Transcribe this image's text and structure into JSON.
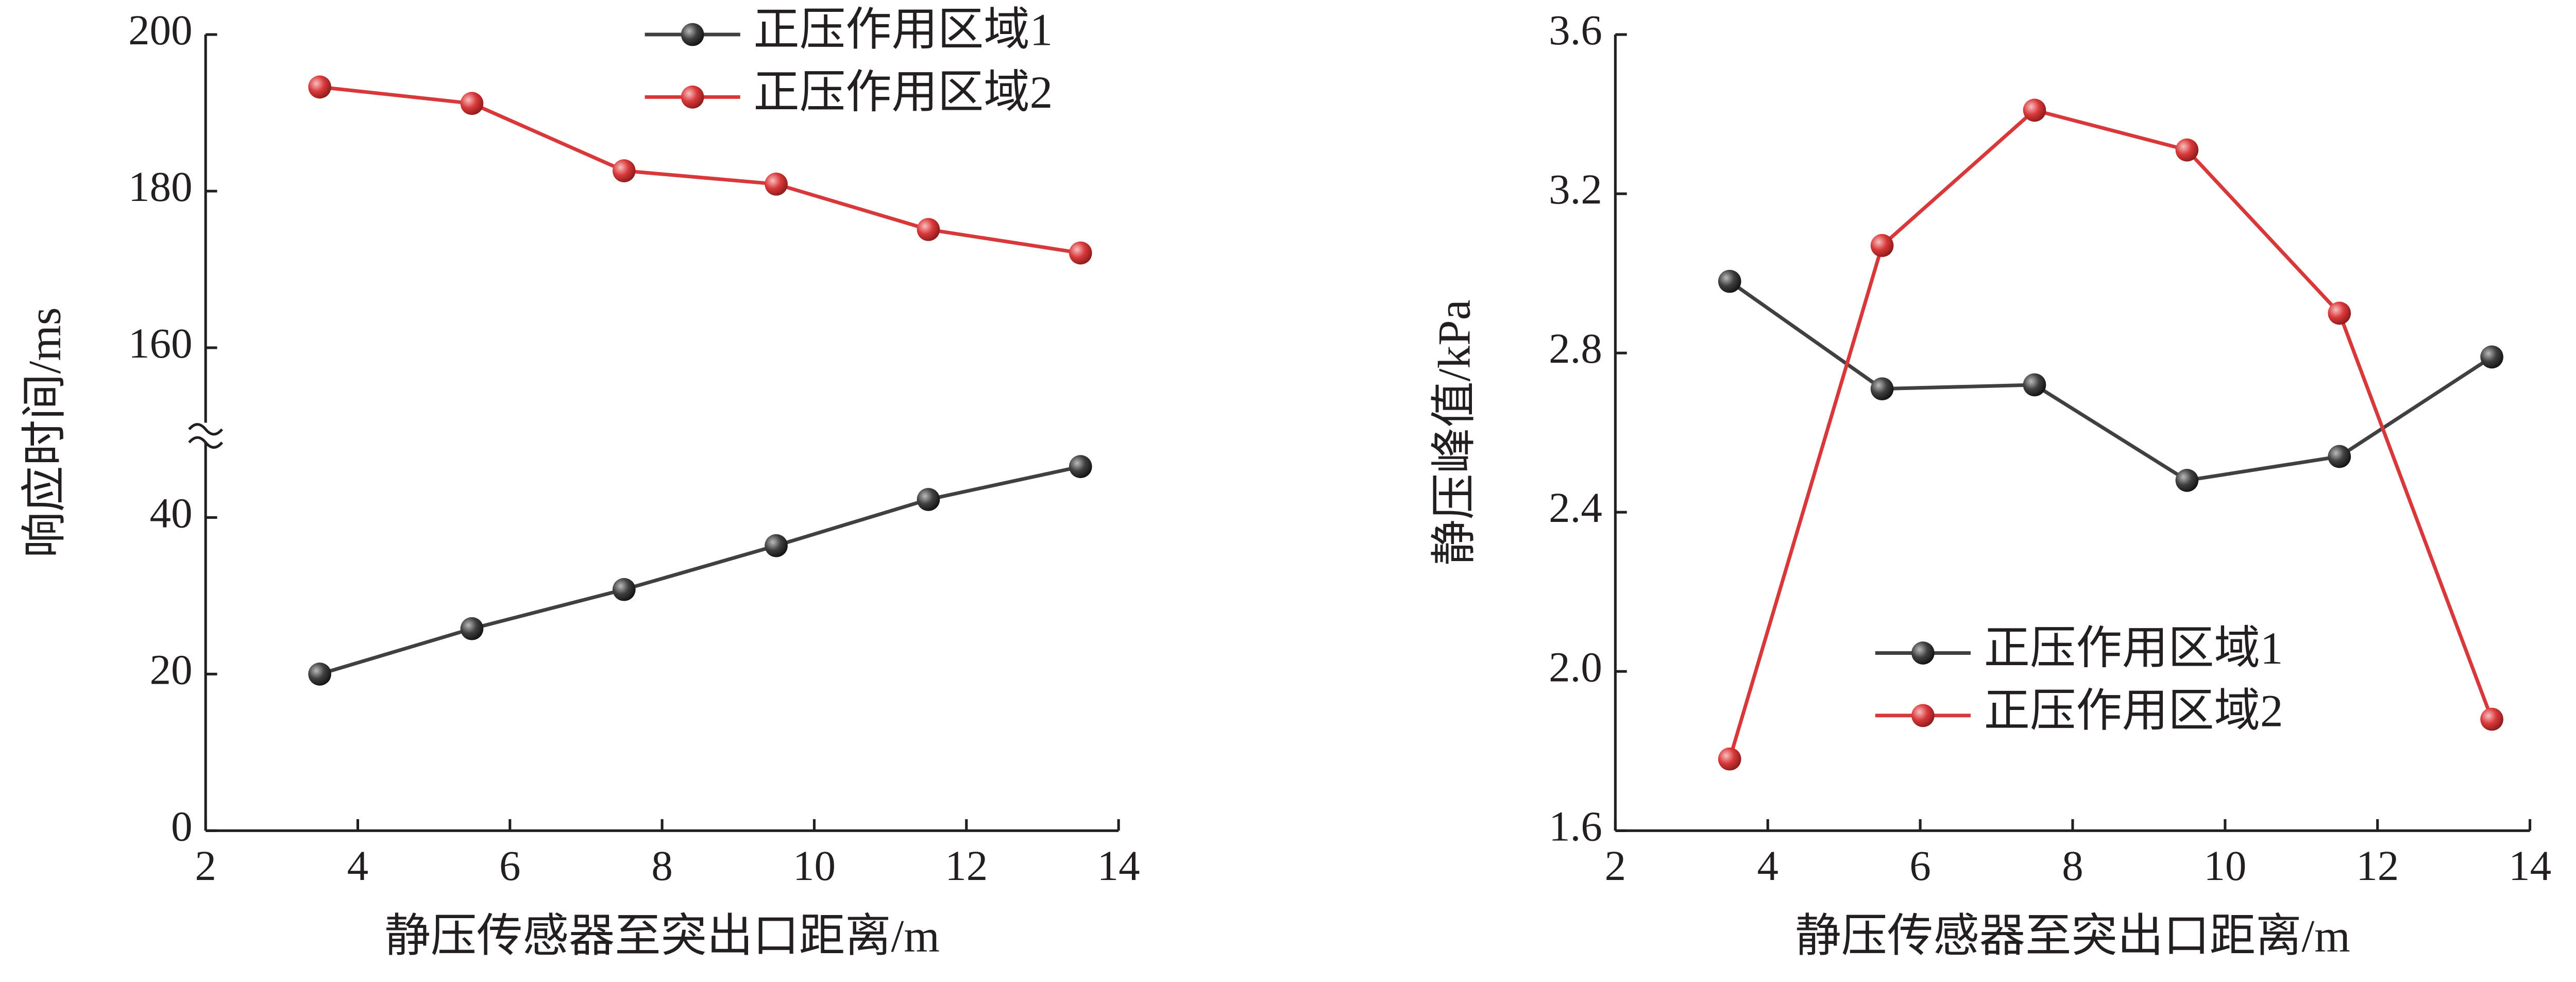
{
  "chart_data": [
    {
      "type": "line",
      "x_label": "静压传感器至突出口距离/m",
      "y_label": "响应时间/ms",
      "x": [
        3.5,
        5.5,
        7.5,
        9.5,
        11.5,
        13.5
      ],
      "series": [
        {
          "name": "正压作用区域1",
          "color": "#404040",
          "values": [
            20,
            25.8,
            30.8,
            36.4,
            42.3,
            46.5
          ]
        },
        {
          "name": "正压作用区域2",
          "color": "#d9383a",
          "values": [
            193.3,
            191.2,
            182.6,
            180.9,
            175.1,
            172.1
          ]
        }
      ],
      "xlim": [
        2,
        14
      ],
      "xticks": [
        2,
        4,
        6,
        8,
        10,
        12,
        14
      ],
      "ylim": [
        0,
        200
      ],
      "ybreak": [
        50,
        150
      ],
      "yticks": [
        0,
        20,
        40,
        160,
        180,
        200
      ],
      "legend": "upper right"
    },
    {
      "type": "line",
      "x_label": "静压传感器至突出口距离/m",
      "y_label": "静压峰值/kPa",
      "x": [
        3.5,
        5.5,
        7.5,
        9.5,
        11.5,
        13.5
      ],
      "series": [
        {
          "name": "正压作用区域1",
          "color": "#404040",
          "values": [
            2.98,
            2.71,
            2.72,
            2.48,
            2.54,
            2.79
          ]
        },
        {
          "name": "正压作用区域2",
          "color": "#d9383a",
          "values": [
            1.78,
            3.07,
            3.41,
            3.31,
            2.9,
            1.88
          ]
        }
      ],
      "xlim": [
        2,
        14
      ],
      "xticks": [
        2,
        4,
        6,
        8,
        10,
        12,
        14
      ],
      "ylim": [
        1.6,
        3.6
      ],
      "yticks": [
        1.6,
        {
          "value": 2,
          "label": "2.0"
        },
        2.4,
        2.8,
        3.2,
        3.6
      ],
      "legend": "lower center"
    }
  ]
}
